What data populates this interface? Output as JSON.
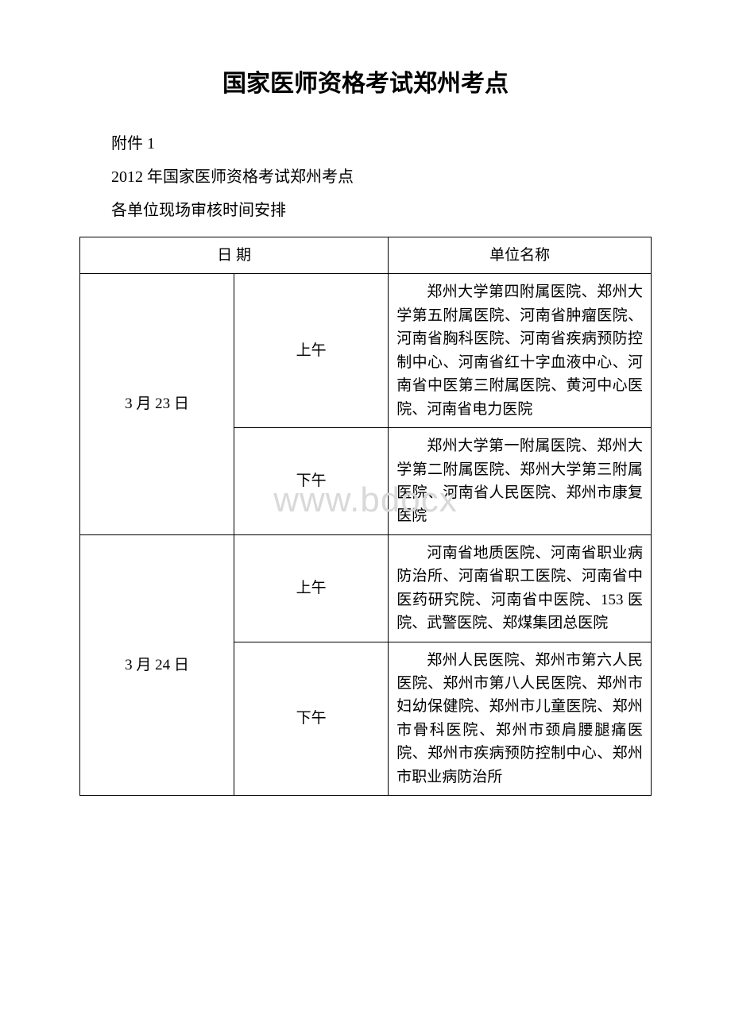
{
  "title": "国家医师资格考试郑州考点",
  "attachment_label": "附件 1",
  "subtitle_line2": "2012 年国家医师资格考试郑州考点",
  "subtitle_line3": "各单位现场审核时间安排",
  "watermark": "www.bdocx",
  "table": {
    "header": {
      "date": "日 期",
      "unit_name": "单位名称"
    },
    "rows": [
      {
        "date": "3 月 23 日",
        "sessions": [
          {
            "period": "上午",
            "units": "郑州大学第四附属医院、郑州大学第五附属医院、河南省肿瘤医院、河南省胸科医院、河南省疾病预防控制中心、河南省红十字血液中心、河南省中医第三附属医院、黄河中心医院、河南省电力医院"
          },
          {
            "period": "下午",
            "units": "郑州大学第一附属医院、郑州大学第二附属医院、郑州大学第三附属医院、河南省人民医院、郑州市康复医院"
          }
        ]
      },
      {
        "date": "3 月 24 日",
        "sessions": [
          {
            "period": "上午",
            "units": "河南省地质医院、河南省职业病防治所、河南省职工医院、河南省中医药研究院、河南省中医院、153 医院、武警医院、郑煤集团总医院"
          },
          {
            "period": "下午",
            "units": "郑州人民医院、郑州市第六人民医院、郑州市第八人民医院、郑州市妇幼保健院、郑州市儿童医院、郑州市骨科医院、郑州市颈肩腰腿痛医院、郑州市疾病预防控制中心、郑州市职业病防治所"
          }
        ]
      }
    ]
  }
}
